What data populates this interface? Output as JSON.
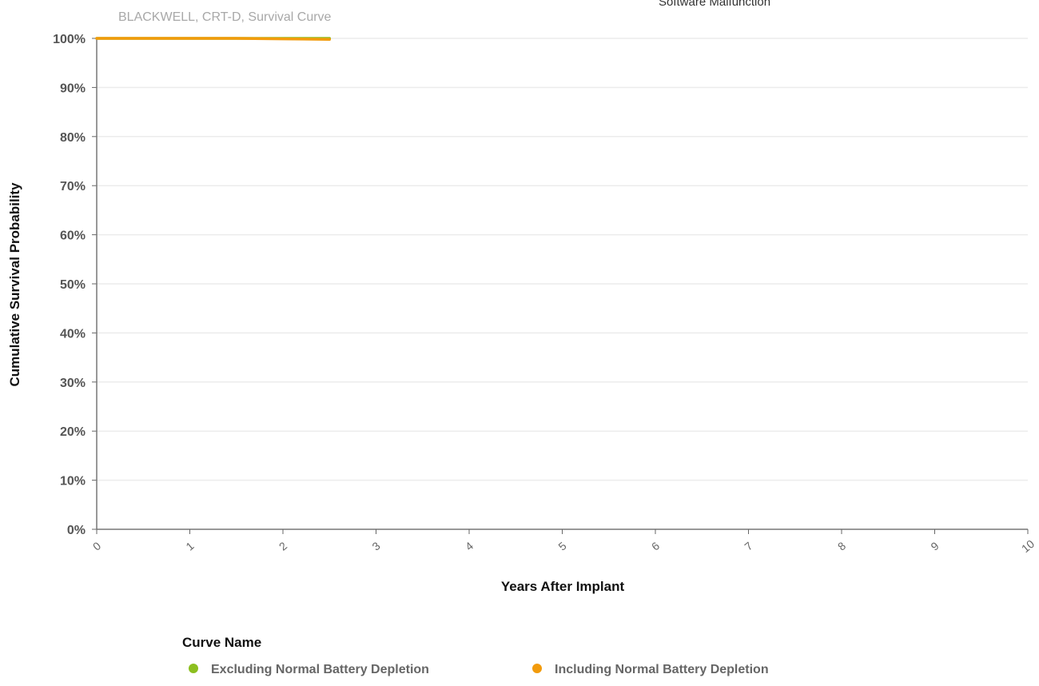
{
  "page": {
    "note": "Software Malfunction"
  },
  "chart_data": {
    "type": "line",
    "title": "BLACKWELL, CRT-D,  Survival Curve",
    "xlabel": "Years After Implant",
    "ylabel": "Cumulative Survival Probability",
    "xlim": [
      0,
      10
    ],
    "ylim": [
      0,
      100
    ],
    "x_ticks": [
      "0",
      "1",
      "2",
      "3",
      "4",
      "5",
      "6",
      "7",
      "8",
      "9",
      "10"
    ],
    "y_ticks": [
      "0%",
      "10%",
      "20%",
      "30%",
      "40%",
      "50%",
      "60%",
      "70%",
      "80%",
      "90%",
      "100%"
    ],
    "grid": true,
    "legend": {
      "title": "Curve Name",
      "position": "bottom"
    },
    "series": [
      {
        "name": "Excluding Normal Battery Depletion",
        "color": "#8cbf1f",
        "points": [
          [
            0,
            100
          ],
          [
            0.5,
            100
          ],
          [
            1,
            100
          ],
          [
            1.5,
            100
          ],
          [
            2,
            100
          ],
          [
            2.5,
            100
          ]
        ]
      },
      {
        "name": "Including Normal Battery Depletion",
        "color": "#f29b0c",
        "points": [
          [
            0,
            100
          ],
          [
            0.5,
            100
          ],
          [
            1,
            100
          ],
          [
            1.5,
            100
          ],
          [
            2,
            99.9
          ],
          [
            2.5,
            99.8
          ]
        ]
      }
    ]
  }
}
